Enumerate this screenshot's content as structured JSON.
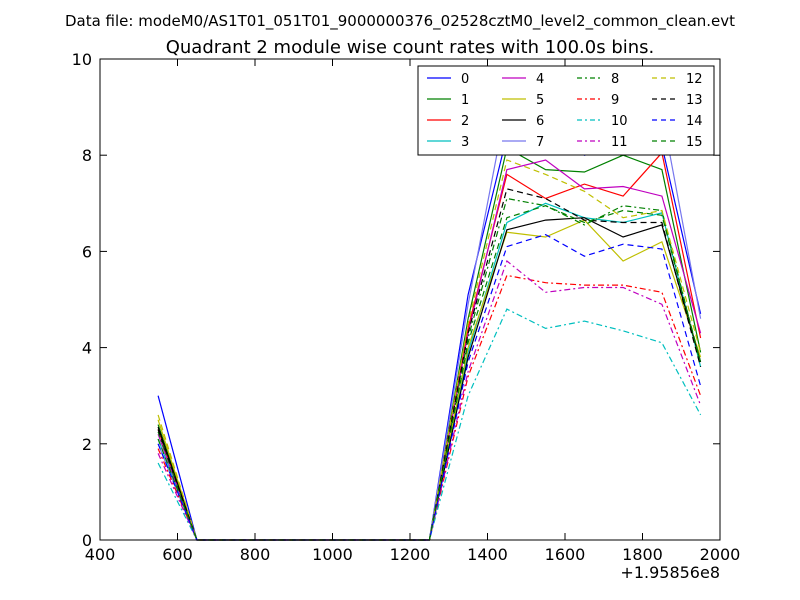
{
  "suptitle": "Data file: modeM0/AS1T01_051T01_9000000376_02528cztM0_level2_common_clean.evt",
  "chart_data": {
    "type": "line",
    "title": "Quadrant 2 module wise count rates with 100.0s bins.",
    "xlabel": "",
    "ylabel": "",
    "xlim": [
      400,
      2000
    ],
    "ylim": [
      0,
      10
    ],
    "x_offset_label": "+1.95856e8",
    "xticks": [
      400,
      600,
      800,
      1000,
      1200,
      1400,
      1600,
      1800,
      2000
    ],
    "yticks": [
      0,
      2,
      4,
      6,
      8,
      10
    ],
    "xticklabels": [
      "400",
      "600",
      "800",
      "1000",
      "1200",
      "1400",
      "1600",
      "1800",
      "2000"
    ],
    "yticklabels": [
      "0",
      "2",
      "4",
      "6",
      "8",
      "10"
    ],
    "x": [
      550,
      650,
      750,
      850,
      950,
      1050,
      1150,
      1250,
      1350,
      1450,
      1550,
      1650,
      1750,
      1850,
      1950
    ],
    "legend_position": "top-right",
    "series": [
      {
        "name": "0",
        "color": "#0000ff",
        "dash": "solid",
        "values": [
          3.0,
          0,
          0,
          0,
          0,
          0,
          0,
          0,
          5.1,
          8.4,
          8.5,
          8.0,
          8.2,
          8.2,
          4.7
        ]
      },
      {
        "name": "1",
        "color": "#008000",
        "dash": "solid",
        "values": [
          2.4,
          0,
          0,
          0,
          0,
          0,
          0,
          0,
          4.6,
          8.15,
          7.7,
          7.65,
          8.0,
          7.7,
          3.9
        ]
      },
      {
        "name": "2",
        "color": "#ff0000",
        "dash": "solid",
        "values": [
          2.3,
          0,
          0,
          0,
          0,
          0,
          0,
          0,
          4.4,
          7.6,
          7.1,
          7.4,
          7.15,
          8.05,
          4.2
        ]
      },
      {
        "name": "3",
        "color": "#00bfbf",
        "dash": "solid",
        "values": [
          2.1,
          0,
          0,
          0,
          0,
          0,
          0,
          0,
          3.9,
          6.6,
          7.0,
          6.7,
          6.6,
          6.8,
          3.6
        ]
      },
      {
        "name": "4",
        "color": "#bf00bf",
        "dash": "solid",
        "values": [
          2.2,
          0,
          0,
          0,
          0,
          0,
          0,
          0,
          4.3,
          7.7,
          7.9,
          7.3,
          7.35,
          7.15,
          4.3
        ]
      },
      {
        "name": "5",
        "color": "#bfbf00",
        "dash": "solid",
        "values": [
          2.5,
          0,
          0,
          0,
          0,
          0,
          0,
          0,
          4.0,
          6.4,
          6.3,
          6.65,
          5.8,
          6.2,
          3.8
        ]
      },
      {
        "name": "6",
        "color": "#000000",
        "dash": "solid",
        "values": [
          2.35,
          0,
          0,
          0,
          0,
          0,
          0,
          0,
          3.8,
          6.45,
          6.65,
          6.7,
          6.3,
          6.55,
          3.7
        ]
      },
      {
        "name": "7",
        "color": "#7777ee",
        "dash": "solid",
        "values": [
          2.0,
          0,
          0,
          0,
          0,
          0,
          0,
          0,
          4.9,
          9.1,
          8.85,
          8.5,
          8.35,
          8.9,
          4.6
        ]
      },
      {
        "name": "8",
        "color": "#008000",
        "dash": "dashdot",
        "values": [
          2.25,
          0,
          0,
          0,
          0,
          0,
          0,
          0,
          4.2,
          7.1,
          6.95,
          6.55,
          6.95,
          6.85,
          3.65
        ]
      },
      {
        "name": "9",
        "color": "#ff0000",
        "dash": "dashdot",
        "values": [
          1.9,
          0,
          0,
          0,
          0,
          0,
          0,
          0,
          3.4,
          5.5,
          5.35,
          5.3,
          5.3,
          5.15,
          3.0
        ]
      },
      {
        "name": "10",
        "color": "#00bfbf",
        "dash": "dashdot",
        "values": [
          1.6,
          0,
          0,
          0,
          0,
          0,
          0,
          0,
          3.0,
          4.8,
          4.4,
          4.55,
          4.35,
          4.1,
          2.6
        ]
      },
      {
        "name": "11",
        "color": "#bf00bf",
        "dash": "dashdot",
        "values": [
          1.8,
          0,
          0,
          0,
          0,
          0,
          0,
          0,
          3.5,
          5.8,
          5.15,
          5.25,
          5.25,
          4.9,
          2.8
        ]
      },
      {
        "name": "12",
        "color": "#bfbf00",
        "dash": "dashed",
        "values": [
          2.6,
          0,
          0,
          0,
          0,
          0,
          0,
          0,
          4.5,
          7.9,
          7.6,
          7.25,
          6.7,
          6.85,
          3.9
        ]
      },
      {
        "name": "13",
        "color": "#000000",
        "dash": "dashed",
        "values": [
          2.3,
          0,
          0,
          0,
          0,
          0,
          0,
          0,
          4.3,
          7.3,
          7.1,
          6.65,
          6.6,
          6.6,
          3.6
        ]
      },
      {
        "name": "14",
        "color": "#0000ff",
        "dash": "dashed",
        "values": [
          2.0,
          0,
          0,
          0,
          0,
          0,
          0,
          0,
          3.7,
          6.1,
          6.35,
          5.9,
          6.15,
          6.05,
          3.2
        ]
      },
      {
        "name": "15",
        "color": "#008000",
        "dash": "dashed",
        "values": [
          2.1,
          0,
          0,
          0,
          0,
          0,
          0,
          0,
          4.1,
          6.7,
          6.95,
          6.6,
          6.85,
          6.75,
          3.7
        ]
      }
    ]
  }
}
